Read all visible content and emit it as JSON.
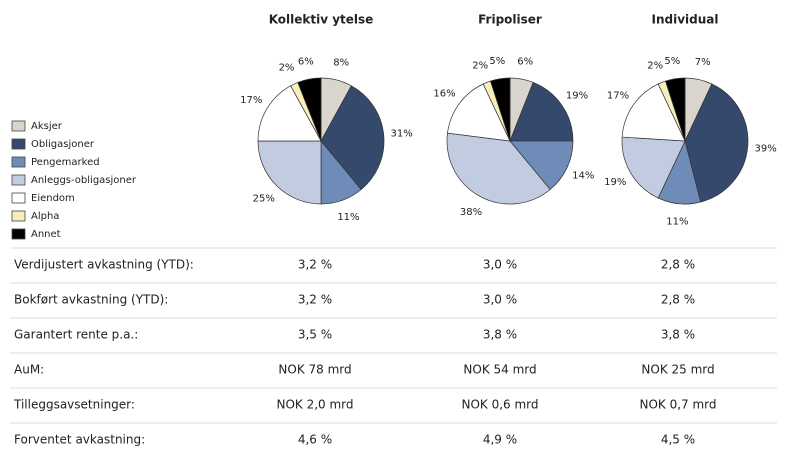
{
  "legend": {
    "labels": [
      "Aksjer",
      "Obligasjoner",
      "Pengemarked",
      "Anleggs-obligasjoner",
      "Eiendom",
      "Alpha",
      "Annet"
    ],
    "colors": [
      "#d9d5cc",
      "#34496b",
      "#6f8bb8",
      "#c2cce0",
      "#ffffff",
      "#f7eebc",
      "#000000"
    ]
  },
  "chart_data": [
    {
      "type": "pie",
      "title": "Kollektiv ytelse",
      "values": [
        8,
        31,
        11,
        25,
        17,
        2,
        6
      ],
      "value_labels": [
        "8%",
        "31%",
        "11%",
        "25%",
        "17%",
        "2%",
        "6%"
      ]
    },
    {
      "type": "pie",
      "title": "Fripoliser",
      "values": [
        6,
        19,
        14,
        38,
        16,
        2,
        5
      ],
      "value_labels": [
        "6%",
        "19%",
        "14%",
        "38%",
        "16%",
        "2%",
        "5%"
      ]
    },
    {
      "type": "pie",
      "title": "Individual",
      "values": [
        7,
        39,
        11,
        19,
        17,
        2,
        5
      ],
      "value_labels": [
        "7%",
        "39%",
        "11%",
        "19%",
        "17%",
        "2%",
        "5%"
      ]
    }
  ],
  "table": {
    "rows": [
      [
        "Verdijustert avkastning (YTD):",
        "3,2 %",
        "3,0 %",
        "2,8 %"
      ],
      [
        "Bokført avkastning (YTD):",
        "3,2 %",
        "3,0 %",
        "2,8 %"
      ],
      [
        "Garantert rente p.a.:",
        "3,5 %",
        "3,8 %",
        "3,8 %"
      ],
      [
        "AuM:",
        "NOK 78 mrd",
        "NOK 54 mrd",
        "NOK 25 mrd"
      ],
      [
        "Tilleggsavsetninger:",
        "NOK 2,0 mrd",
        "NOK 0,6 mrd",
        "NOK 0,7 mrd"
      ],
      [
        "Forventet avkastning:",
        "4,6 %",
        "4,9 %",
        "4,5 %"
      ]
    ]
  }
}
